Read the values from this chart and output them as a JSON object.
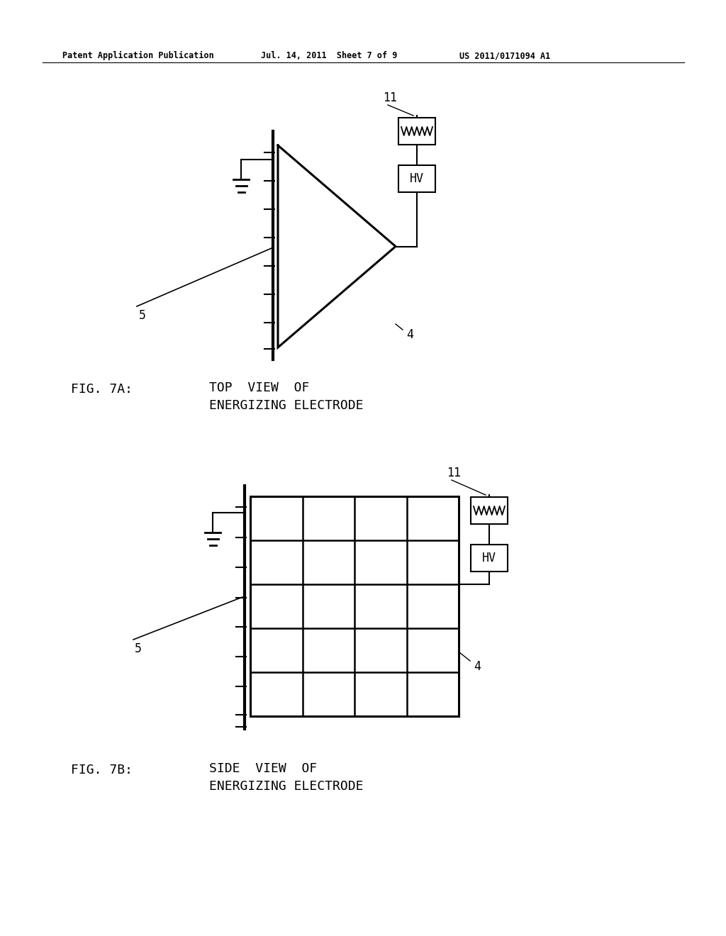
{
  "bg_color": "#ffffff",
  "text_color": "#000000",
  "header_left": "Patent Application Publication",
  "header_mid": "Jul. 14, 2011  Sheet 7 of 9",
  "header_right": "US 2011/0171094 A1",
  "fig7a_caption": "FIG. 7A:",
  "fig7a_desc1": "TOP  VIEW  OF",
  "fig7a_desc2": "ENERGIZING ELECTRODE",
  "fig7b_caption": "FIG. 7B:",
  "fig7b_desc1": "SIDE  VIEW  OF",
  "fig7b_desc2": "ENERGIZING ELECTRODE"
}
